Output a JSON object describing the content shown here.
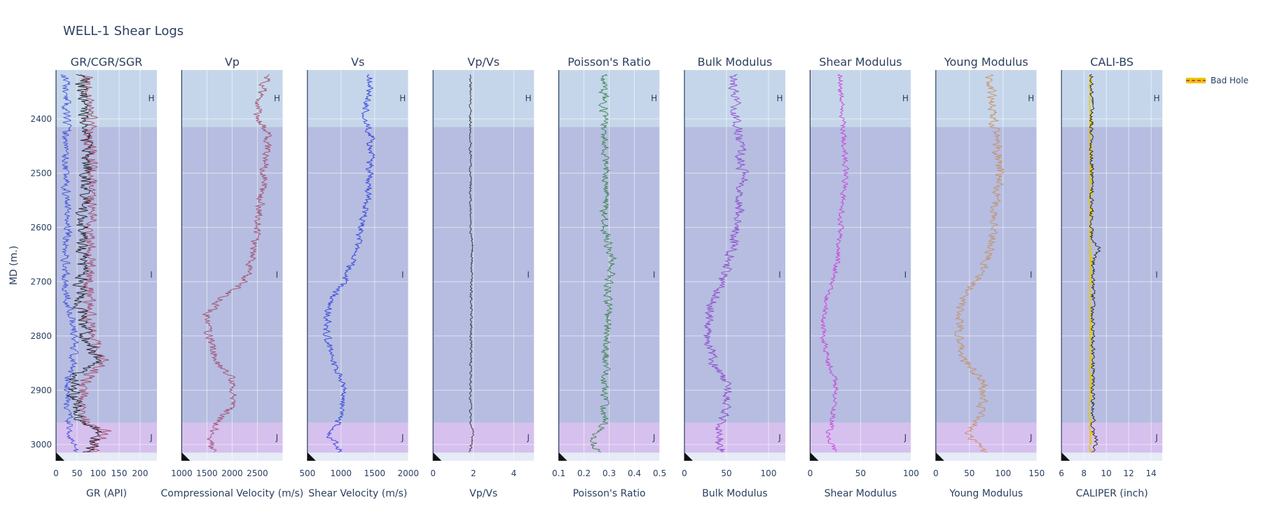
{
  "chart_data": {
    "type": "line",
    "title": "WELL-1 Shear Logs",
    "ylabel": "MD (m.)",
    "y_reversed": true,
    "ylim": [
      2310,
      3030
    ],
    "yticks": [
      2400,
      2500,
      2600,
      2700,
      2800,
      2900,
      3000
    ],
    "depth_start": 2318,
    "depth_end": 3015,
    "zones": [
      {
        "name": "H",
        "top": 2310,
        "base": 2415,
        "color": "#c6d6ea"
      },
      {
        "name": "I",
        "top": 2415,
        "base": 2960,
        "color": "#b6bde0"
      },
      {
        "name": "J",
        "top": 2960,
        "base": 3015,
        "color": "#d6c0ee"
      }
    ],
    "tracks": [
      {
        "title": "GR/CGR/SGR",
        "xlabel": "GR (API)",
        "xlim": [
          0,
          240
        ],
        "xticks": [
          0,
          50,
          100,
          150,
          200
        ],
        "series": [
          {
            "color": "#3344dd",
            "profile": [
              [
                2318,
                20
              ],
              [
                2400,
                25
              ],
              [
                2500,
                22
              ],
              [
                2600,
                28
              ],
              [
                2700,
                20
              ],
              [
                2760,
                35
              ],
              [
                2800,
                45
              ],
              [
                2850,
                40
              ],
              [
                2900,
                25
              ],
              [
                2960,
                30
              ],
              [
                3015,
                45
              ]
            ],
            "noise": 14,
            "seed": 11
          },
          {
            "color": "#a04060",
            "profile": [
              [
                2318,
                70
              ],
              [
                2400,
                80
              ],
              [
                2500,
                85
              ],
              [
                2600,
                80
              ],
              [
                2700,
                80
              ],
              [
                2760,
                75
              ],
              [
                2800,
                85
              ],
              [
                2850,
                110
              ],
              [
                2870,
                80
              ],
              [
                2900,
                60
              ],
              [
                2960,
                70
              ],
              [
                2975,
                120
              ],
              [
                3015,
                80
              ]
            ],
            "noise": 22,
            "seed": 23
          },
          {
            "color": "#111111",
            "profile": [
              [
                2318,
                60
              ],
              [
                2400,
                70
              ],
              [
                2500,
                75
              ],
              [
                2600,
                60
              ],
              [
                2700,
                60
              ],
              [
                2760,
                60
              ],
              [
                2800,
                70
              ],
              [
                2850,
                100
              ],
              [
                2870,
                50
              ],
              [
                2900,
                40
              ],
              [
                2960,
                60
              ],
              [
                2975,
                110
              ],
              [
                3015,
                70
              ]
            ],
            "noise": 22,
            "seed": 37
          }
        ]
      },
      {
        "title": "Vp",
        "xlabel": "Compressional Velocity (m/s)",
        "xlim": [
          1000,
          3000
        ],
        "xticks": [
          1000,
          1500,
          2000,
          2500
        ],
        "series": [
          {
            "color": "#a04060",
            "profile": [
              [
                2318,
                2700
              ],
              [
                2360,
                2550
              ],
              [
                2400,
                2500
              ],
              [
                2430,
                2700
              ],
              [
                2500,
                2650
              ],
              [
                2560,
                2550
              ],
              [
                2600,
                2500
              ],
              [
                2650,
                2400
              ],
              [
                2700,
                2250
              ],
              [
                2730,
                1800
              ],
              [
                2760,
                1500
              ],
              [
                2800,
                1550
              ],
              [
                2850,
                1700
              ],
              [
                2880,
                2000
              ],
              [
                2920,
                2050
              ],
              [
                2960,
                1700
              ],
              [
                2980,
                1600
              ],
              [
                3015,
                1600
              ]
            ],
            "noise": 120,
            "seed": 5
          }
        ]
      },
      {
        "title": "Vs",
        "xlabel": "Shear Velocity (m/s)",
        "xlim": [
          500,
          2000
        ],
        "xticks": [
          500,
          1000,
          1500,
          2000
        ],
        "series": [
          {
            "color": "#2233dd",
            "profile": [
              [
                2318,
                1450
              ],
              [
                2360,
                1400
              ],
              [
                2400,
                1350
              ],
              [
                2430,
                1450
              ],
              [
                2500,
                1420
              ],
              [
                2560,
                1380
              ],
              [
                2600,
                1300
              ],
              [
                2650,
                1200
              ],
              [
                2700,
                1050
              ],
              [
                2730,
                850
              ],
              [
                2760,
                800
              ],
              [
                2800,
                780
              ],
              [
                2850,
                900
              ],
              [
                2880,
                1000
              ],
              [
                2920,
                1050
              ],
              [
                2960,
                950
              ],
              [
                2980,
                800
              ],
              [
                3015,
                1000
              ]
            ],
            "noise": 80,
            "seed": 9
          }
        ]
      },
      {
        "title": "Vp/Vs",
        "xlabel": "Vp/Vs",
        "xlim": [
          0,
          5
        ],
        "xticks": [
          0,
          2,
          4
        ],
        "series": [
          {
            "color": "#222222",
            "profile": [
              [
                2318,
                1.85
              ],
              [
                2600,
                1.85
              ],
              [
                2640,
                1.95
              ],
              [
                2700,
                1.9
              ],
              [
                2960,
                1.85
              ],
              [
                2980,
                2.0
              ],
              [
                3015,
                1.8
              ]
            ],
            "noise": 0.08,
            "seed": 14
          }
        ]
      },
      {
        "title": "Poisson's Ratio",
        "xlabel": "Poisson's Ratio",
        "xlim": [
          0.1,
          0.5
        ],
        "xticks": [
          0.1,
          0.2,
          0.3,
          0.4,
          0.5
        ],
        "series": [
          {
            "color": "#2e7d3e",
            "profile": [
              [
                2318,
                0.28
              ],
              [
                2400,
                0.28
              ],
              [
                2500,
                0.29
              ],
              [
                2600,
                0.28
              ],
              [
                2650,
                0.31
              ],
              [
                2700,
                0.3
              ],
              [
                2800,
                0.29
              ],
              [
                2900,
                0.28
              ],
              [
                2960,
                0.28
              ],
              [
                2990,
                0.24
              ],
              [
                3015,
                0.25
              ]
            ],
            "noise": 0.025,
            "seed": 17
          }
        ]
      },
      {
        "title": "Bulk Modulus",
        "xlabel": "Bulk Modulus",
        "xlim": [
          0,
          120
        ],
        "xticks": [
          0,
          50,
          100
        ],
        "series": [
          {
            "color": "#8a3dcc",
            "profile": [
              [
                2318,
                58
              ],
              [
                2400,
                60
              ],
              [
                2430,
                65
              ],
              [
                2500,
                70
              ],
              [
                2600,
                62
              ],
              [
                2650,
                55
              ],
              [
                2700,
                45
              ],
              [
                2730,
                35
              ],
              [
                2760,
                30
              ],
              [
                2800,
                28
              ],
              [
                2850,
                35
              ],
              [
                2880,
                50
              ],
              [
                2920,
                50
              ],
              [
                2960,
                45
              ],
              [
                2980,
                40
              ],
              [
                3015,
                45
              ]
            ],
            "noise": 9,
            "seed": 21
          }
        ]
      },
      {
        "title": "Shear Modulus",
        "xlabel": "Shear Modulus",
        "xlim": [
          0,
          100
        ],
        "xticks": [
          0,
          50,
          100
        ],
        "series": [
          {
            "color": "#cc33dd",
            "profile": [
              [
                2318,
                30
              ],
              [
                2400,
                32
              ],
              [
                2430,
                33
              ],
              [
                2500,
                35
              ],
              [
                2600,
                30
              ],
              [
                2650,
                28
              ],
              [
                2700,
                22
              ],
              [
                2730,
                16
              ],
              [
                2760,
                14
              ],
              [
                2800,
                13
              ],
              [
                2850,
                18
              ],
              [
                2880,
                25
              ],
              [
                2920,
                25
              ],
              [
                2960,
                22
              ],
              [
                2980,
                18
              ],
              [
                3015,
                25
              ]
            ],
            "noise": 4,
            "seed": 27
          }
        ]
      },
      {
        "title": "Young Modulus",
        "xlabel": "Young Modulus",
        "xlim": [
          0,
          150
        ],
        "xticks": [
          0,
          50,
          100,
          150
        ],
        "series": [
          {
            "color": "#c98a55",
            "profile": [
              [
                2318,
                80
              ],
              [
                2400,
                85
              ],
              [
                2430,
                90
              ],
              [
                2500,
                95
              ],
              [
                2600,
                85
              ],
              [
                2650,
                80
              ],
              [
                2700,
                60
              ],
              [
                2730,
                40
              ],
              [
                2760,
                35
              ],
              [
                2800,
                32
              ],
              [
                2850,
                45
              ],
              [
                2880,
                70
              ],
              [
                2920,
                70
              ],
              [
                2960,
                60
              ],
              [
                2980,
                50
              ],
              [
                3015,
                70
              ]
            ],
            "noise": 10,
            "seed": 31
          }
        ]
      },
      {
        "title": "CALI-BS",
        "xlabel": "CALIPER (inch)",
        "xlim": [
          6,
          15
        ],
        "xticks": [
          6,
          8,
          10,
          12,
          14
        ],
        "series": [
          {
            "color": "#e8c800",
            "profile": [
              [
                2318,
                8.6
              ],
              [
                3015,
                8.6
              ]
            ],
            "noise": 0.25,
            "seed": 41,
            "fill_from": 8.5
          },
          {
            "color": "#111111",
            "profile": [
              [
                2318,
                8.7
              ],
              [
                2620,
                8.7
              ],
              [
                2640,
                9.4
              ],
              [
                2660,
                8.8
              ],
              [
                2980,
                8.8
              ],
              [
                2990,
                9.2
              ],
              [
                3015,
                8.7
              ]
            ],
            "noise": 0.25,
            "seed": 43
          }
        ]
      }
    ],
    "legend": {
      "label": "Bad Hole",
      "color": "#e8c800",
      "line_color": "#e04040",
      "position": "top-right"
    }
  }
}
